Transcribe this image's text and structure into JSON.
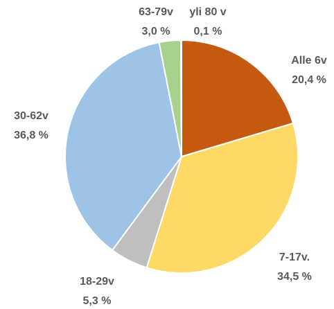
{
  "chart_data": {
    "type": "pie",
    "categories": [
      "Alle 6v",
      "7-17v.",
      "18-29v",
      "30-62v",
      "63-79v",
      "yli 80 v"
    ],
    "values": [
      20.4,
      34.5,
      5.3,
      36.8,
      3.0,
      0.1
    ],
    "value_labels": [
      "20,4 %",
      "34,5 %",
      "5,3 %",
      "36,8 %",
      "3,0 %",
      "0,1 %"
    ],
    "colors": [
      "#C55A11",
      "#FFD966",
      "#BFBFBF",
      "#9DC3E6",
      "#A9D18E",
      "#843C0C"
    ]
  }
}
